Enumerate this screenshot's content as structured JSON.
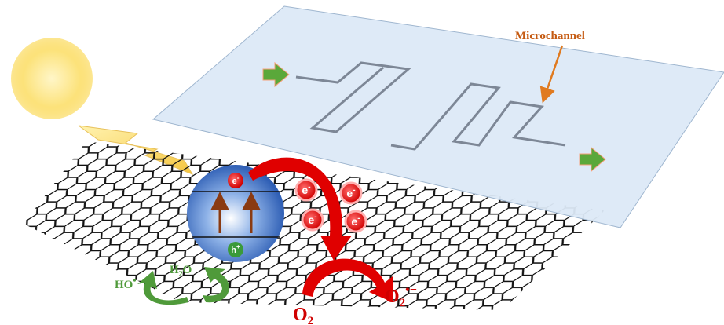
{
  "labels": {
    "microchannel": "Microchannel",
    "sphere_electron": {
      "base": "e",
      "sup": "-"
    },
    "hole": {
      "base": "h",
      "sup": "+"
    },
    "electrons": [
      {
        "base": "e",
        "sup": "-"
      },
      {
        "base": "e",
        "sup": "-"
      },
      {
        "base": "e",
        "sup": "-"
      },
      {
        "base": "e",
        "sup": "-"
      }
    ],
    "water": {
      "base": "H",
      "sub": "2",
      "tail": "O"
    },
    "hydroxyl": {
      "base": "HO",
      "sup": "•"
    },
    "oxygen": {
      "base": "O",
      "sub": "2"
    },
    "superoxide": {
      "base": "O",
      "sub": "2",
      "sup": "•−"
    }
  }
}
